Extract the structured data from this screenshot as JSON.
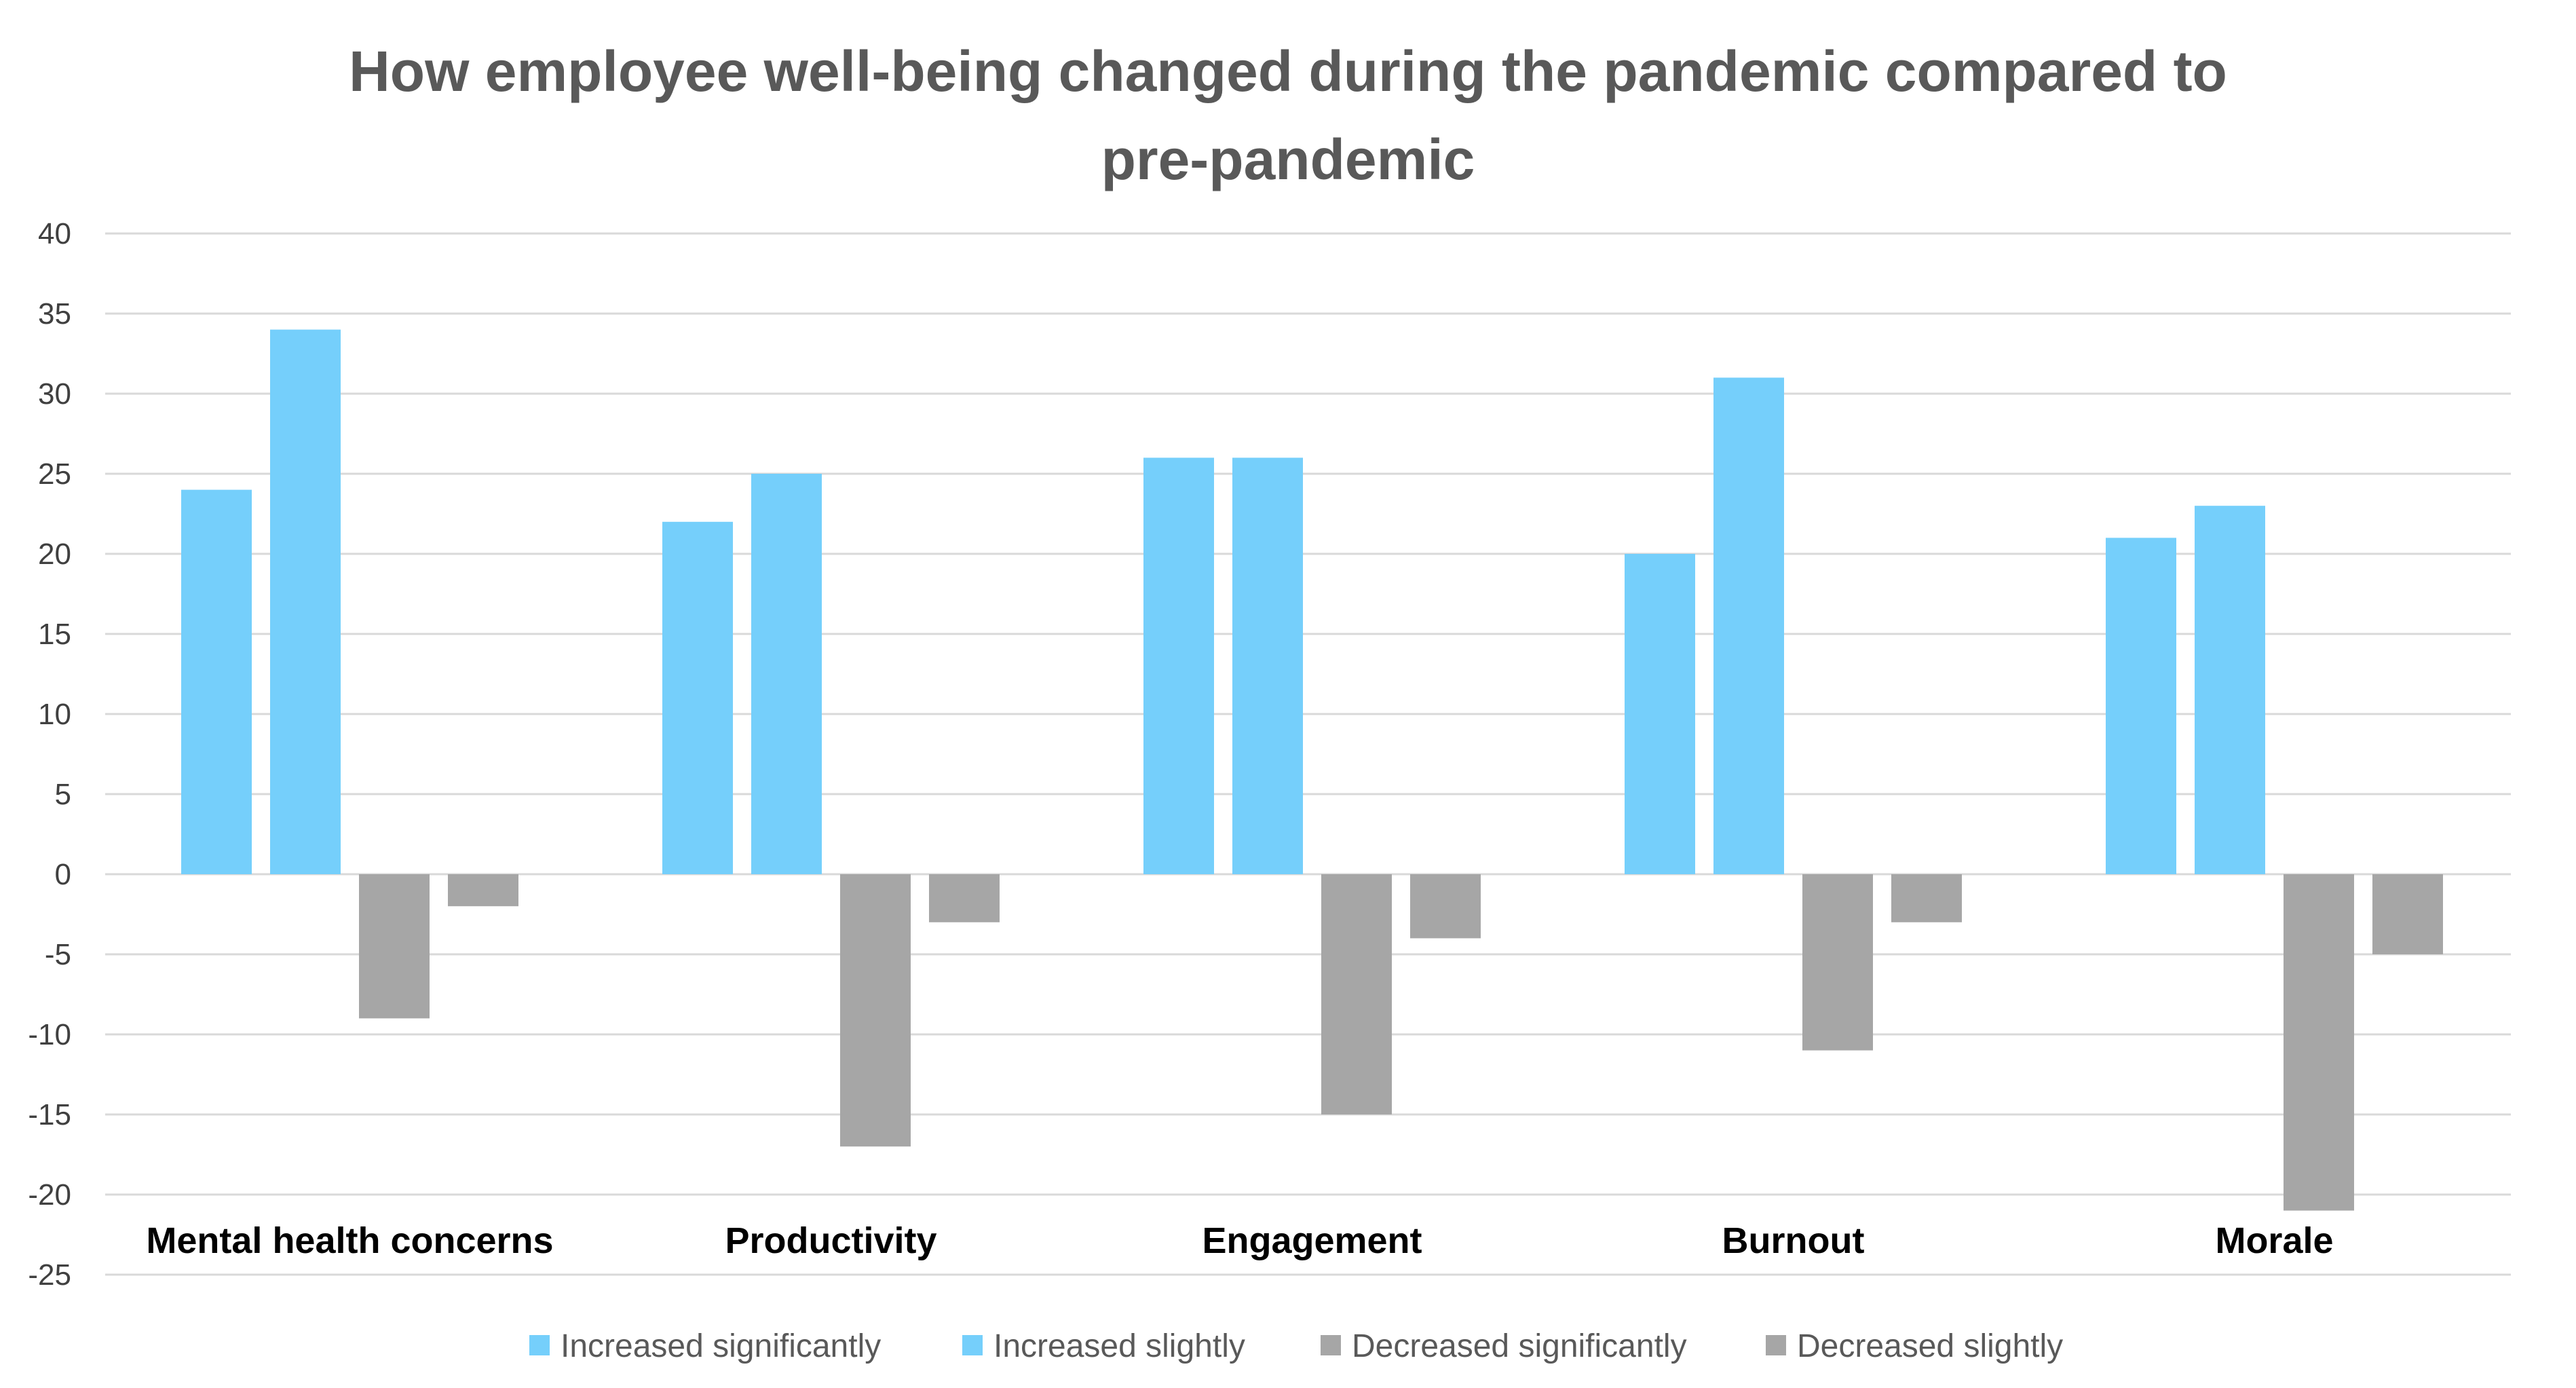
{
  "chart_data": {
    "type": "bar",
    "title": [
      "How employee well-being changed during the pandemic compared to",
      "pre-pandemic"
    ],
    "categories": [
      "Mental health concerns",
      "Productivity",
      "Engagement",
      "Burnout",
      "Morale"
    ],
    "series": [
      {
        "name": "Increased significantly",
        "color": "#75CFFB",
        "values": [
          24,
          22,
          26,
          20,
          21
        ]
      },
      {
        "name": "Increased slightly",
        "color": "#75CFFB",
        "values": [
          34,
          25,
          26,
          31,
          23
        ]
      },
      {
        "name": "Decreased significantly",
        "color": "#A6A6A6",
        "values": [
          -9,
          -17,
          -15,
          -11,
          -21
        ]
      },
      {
        "name": "Decreased slightly",
        "color": "#A6A6A6",
        "values": [
          -2,
          -3,
          -4,
          -3,
          -5
        ]
      }
    ],
    "ylim": [
      -25,
      40
    ],
    "yticks": [
      40,
      35,
      30,
      25,
      20,
      15,
      10,
      5,
      0,
      -5,
      -10,
      -15,
      -20,
      -25
    ],
    "grid": true,
    "legend_position": "bottom",
    "xlabel": "",
    "ylabel": ""
  }
}
